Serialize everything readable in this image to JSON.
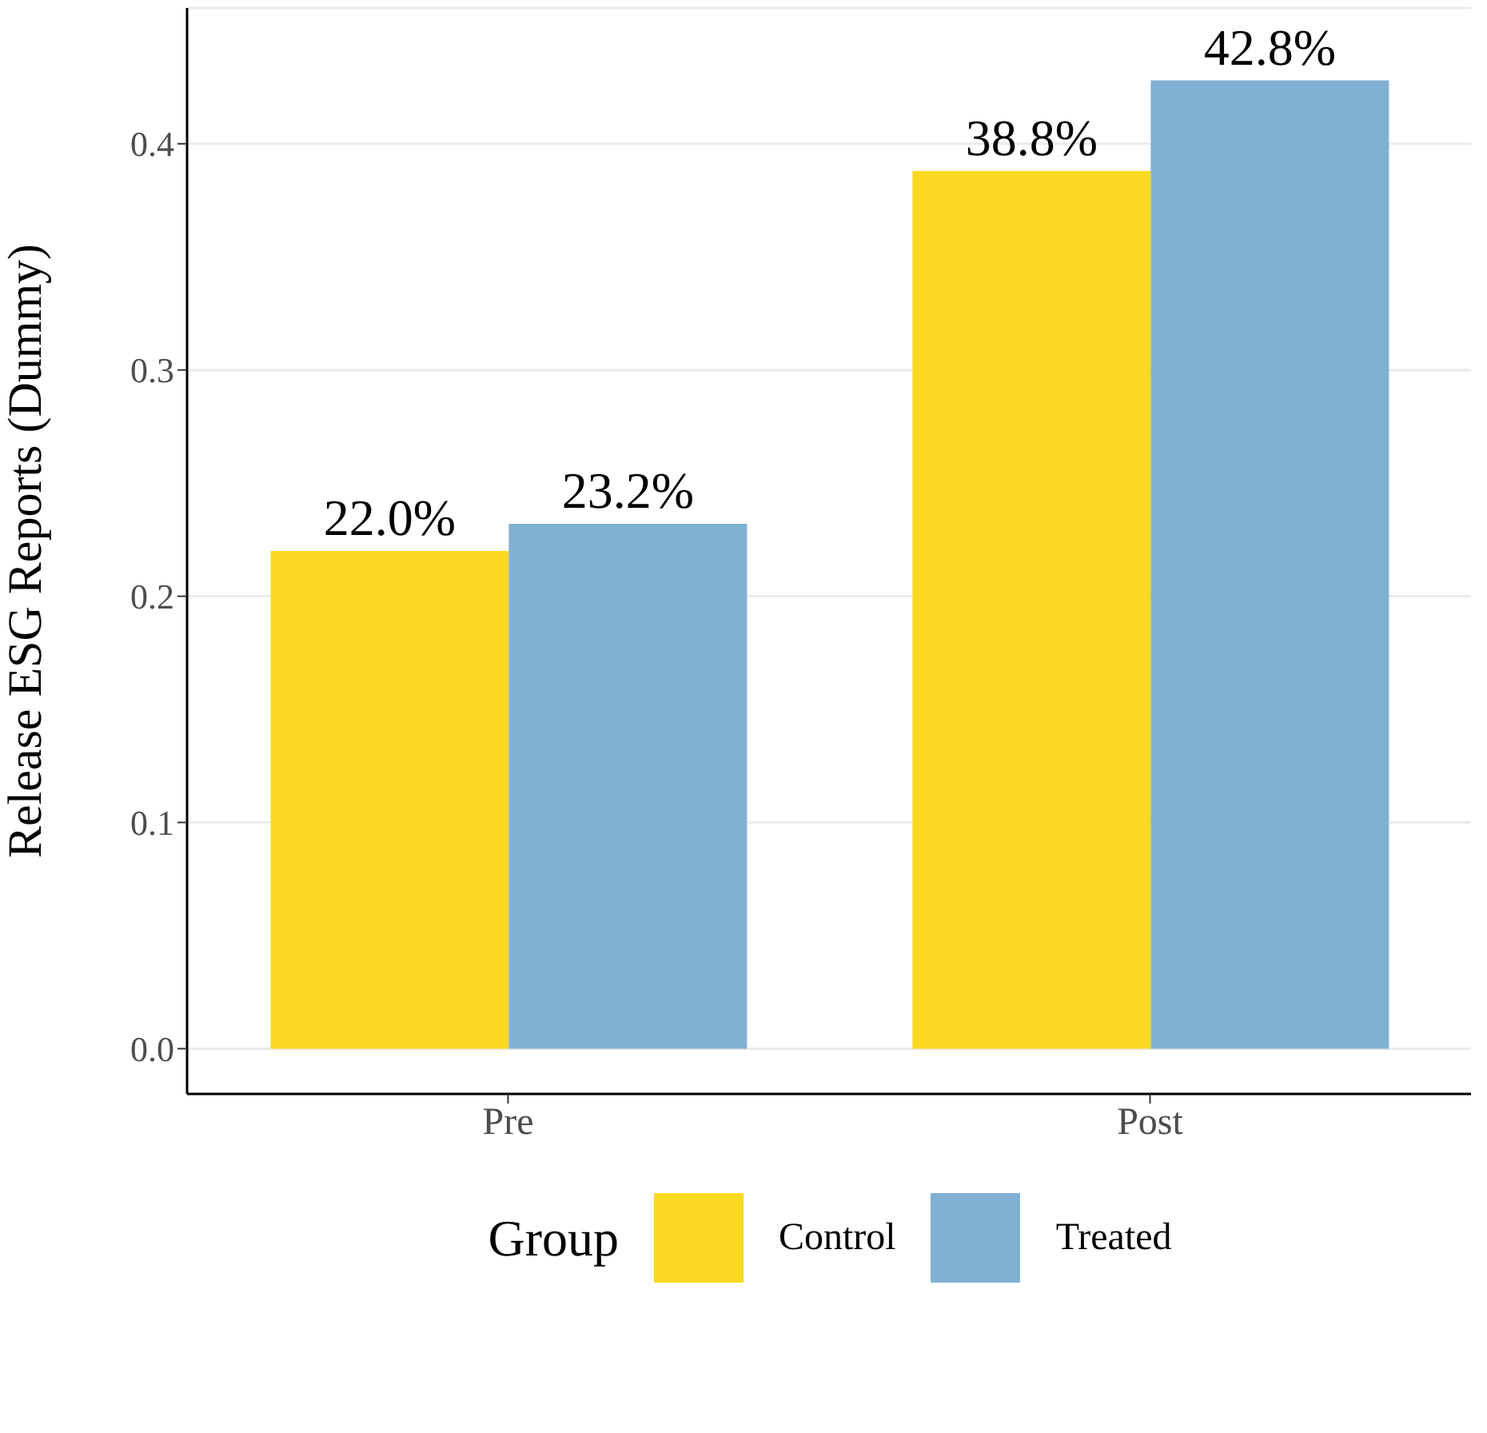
{
  "chart_data": {
    "type": "bar",
    "ylabel": "Release ESG Reports (Dummy)",
    "legend_title": "Group",
    "categories": [
      "Pre",
      "Post"
    ],
    "series": [
      {
        "name": "Control",
        "color": "#fdd924",
        "values": [
          0.22,
          0.388
        ],
        "value_labels": [
          "22.0%",
          "38.8%"
        ]
      },
      {
        "name": "Treated",
        "color": "#80b1d3",
        "values": [
          0.232,
          0.428
        ],
        "value_labels": [
          "23.2%",
          "42.8%"
        ]
      }
    ],
    "ylim": [
      -0.02,
      0.46
    ],
    "yticks": [
      {
        "value": 0,
        "label": "0.0"
      },
      {
        "value": 0.1,
        "label": "0.1"
      },
      {
        "value": 0.2,
        "label": "0.2"
      },
      {
        "value": 0.3,
        "label": "0.3"
      },
      {
        "value": 0.4,
        "label": "0.4"
      }
    ],
    "grid": "y",
    "legend": "bottom"
  }
}
